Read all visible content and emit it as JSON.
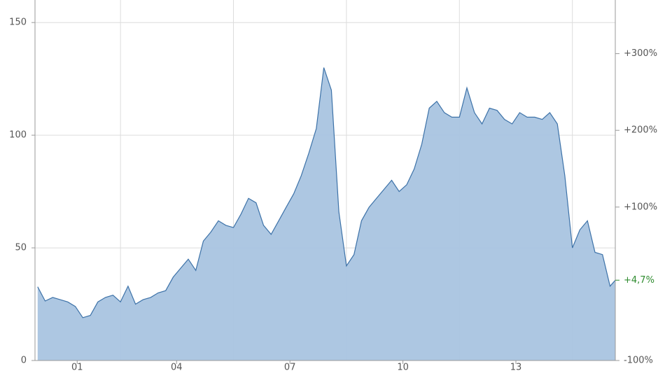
{
  "chart_data": {
    "type": "area",
    "color": "#3d72a8",
    "fill": "#a9c4e0",
    "x": [
      1999.8,
      2000.0,
      2000.2,
      2000.4,
      2000.6,
      2000.8,
      2001.0,
      2001.2,
      2001.4,
      2001.6,
      2001.8,
      2002.0,
      2002.2,
      2002.4,
      2002.6,
      2002.8,
      2003.0,
      2003.2,
      2003.4,
      2003.6,
      2003.8,
      2004.0,
      2004.2,
      2004.4,
      2004.6,
      2004.8,
      2005.0,
      2005.2,
      2005.4,
      2005.6,
      2005.8,
      2006.0,
      2006.2,
      2006.4,
      2006.6,
      2006.8,
      2007.0,
      2007.2,
      2007.4,
      2007.6,
      2007.8,
      2008.0,
      2008.2,
      2008.4,
      2008.6,
      2008.8,
      2009.0,
      2009.2,
      2009.4,
      2009.6,
      2009.8,
      2010.0,
      2010.2,
      2010.4,
      2010.6,
      2010.8,
      2011.0,
      2011.2,
      2011.4,
      2011.6,
      2011.8,
      2012.0,
      2012.2,
      2012.4,
      2012.6,
      2012.8,
      2013.0,
      2013.2,
      2013.4,
      2013.6,
      2013.8,
      2014.0,
      2014.2,
      2014.4,
      2014.6,
      2014.8,
      2015.0,
      2015.14
    ],
    "values": [
      32.7,
      26.4,
      28,
      27,
      26,
      24,
      19,
      20,
      26,
      28,
      29,
      26,
      33,
      25,
      27,
      28,
      30,
      31,
      37,
      41,
      45,
      40,
      53,
      57,
      62,
      60,
      59,
      65,
      72,
      70,
      60,
      56,
      62,
      68,
      74,
      82,
      92,
      103,
      130,
      120,
      66,
      42,
      47,
      62,
      68,
      72,
      76,
      80,
      75,
      78,
      85,
      96,
      112,
      115,
      110,
      108,
      108,
      121,
      110,
      105,
      112,
      111,
      107,
      105,
      110,
      108,
      108,
      107,
      110,
      105,
      82,
      50,
      58,
      62,
      48,
      47,
      33,
      35.65
    ],
    "xlim": [
      1999.73,
      2015.14
    ],
    "xticks": [
      {
        "value": 2000.85,
        "label": "01"
      },
      {
        "value": 2003.49,
        "label": "04"
      },
      {
        "value": 2006.5,
        "label": "07"
      },
      {
        "value": 2009.5,
        "label": "10"
      },
      {
        "value": 2012.5,
        "label": "13"
      }
    ],
    "xgrid": [
      2002,
      2005,
      2008,
      2011,
      2014
    ],
    "ylim": [
      0,
      160
    ],
    "yticks": [
      0,
      50,
      100,
      150
    ],
    "y2lim": [
      -100,
      369.9
    ],
    "y2ticks": [
      {
        "value": -100,
        "label": "-100%"
      },
      {
        "value": 100,
        "label": "+100%"
      },
      {
        "value": 200,
        "label": "+200%"
      },
      {
        "value": 300,
        "label": "+300%"
      }
    ],
    "last_value_label": {
      "value": 4.7,
      "label": "+4,7%",
      "color": "#2e8b2e"
    },
    "grid": true
  }
}
